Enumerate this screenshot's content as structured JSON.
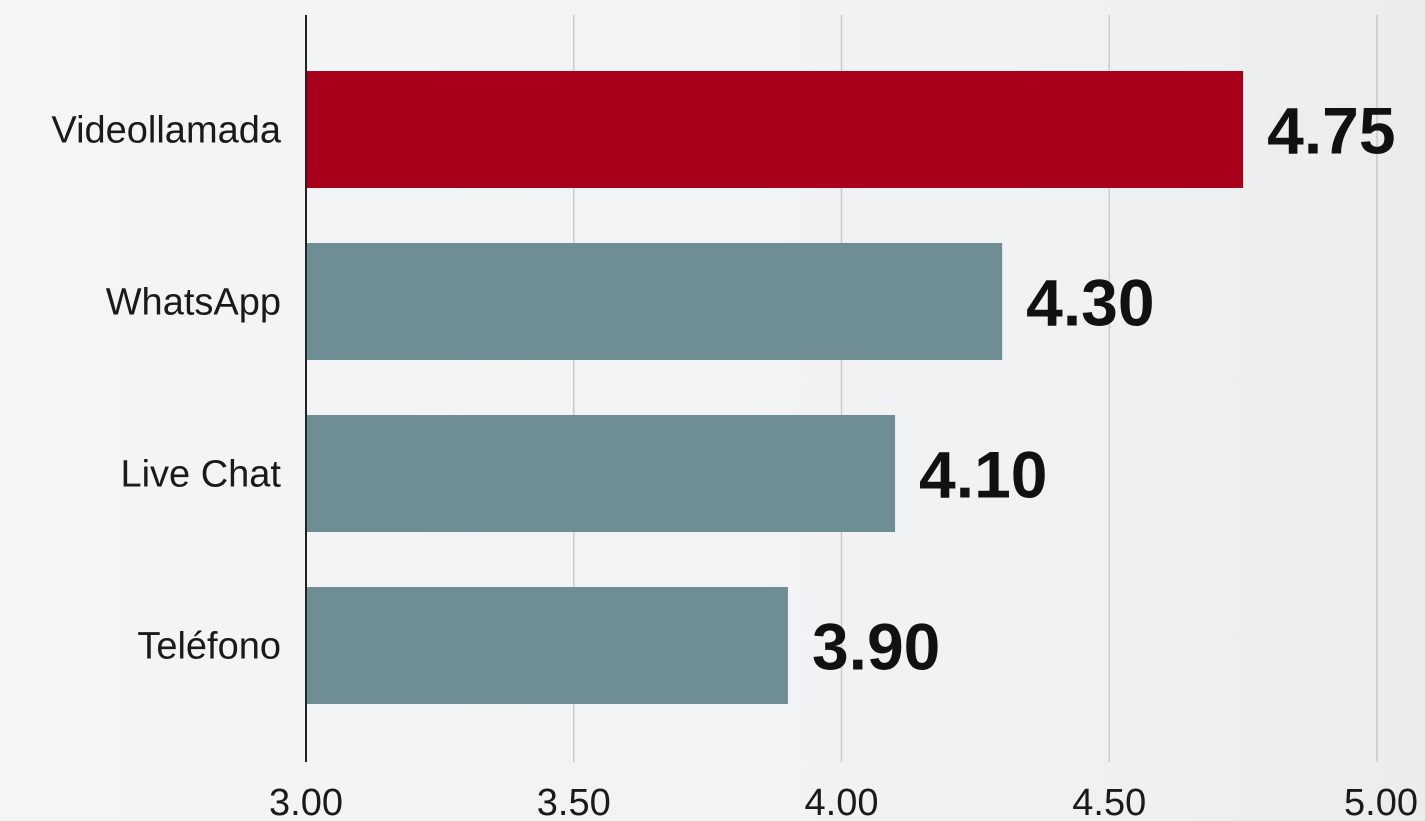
{
  "chart_data": {
    "type": "bar",
    "orientation": "horizontal",
    "title": "",
    "xlabel": "",
    "ylabel": "",
    "categories": [
      "Videollamada",
      "WhatsApp",
      "Live Chat",
      "Teléfono"
    ],
    "values": [
      4.75,
      4.3,
      4.1,
      3.9
    ],
    "value_labels": [
      "4.75",
      "4.30",
      "4.10",
      "3.90"
    ],
    "xlim": [
      3.0,
      5.0
    ],
    "x_ticks": [
      3.0,
      3.5,
      4.0,
      4.5,
      5.0
    ],
    "x_tick_labels": [
      "3.00",
      "3.50",
      "4.00",
      "4.50",
      "5.00"
    ],
    "grid": "vertical",
    "legend": "none",
    "colors": {
      "highlight": "#a8001c",
      "default": "#6f8e93"
    },
    "highlight_index": 0
  }
}
